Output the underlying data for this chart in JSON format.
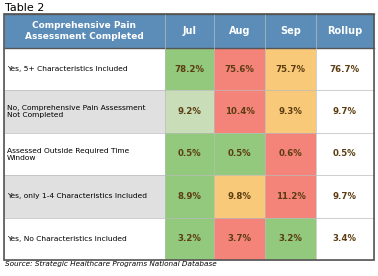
{
  "title": "Table 2",
  "header_label": "Comprehensive Pain\nAssessment Completed",
  "columns": [
    "Jul",
    "Aug",
    "Sep",
    "Rollup"
  ],
  "rows": [
    "Yes, 5+ Characteristics Included",
    "No, Comprehensive Pain Assessment\nNot Completed",
    "Assessed Outside Required Time\nWindow",
    "Yes, only 1-4 Characteristics Included",
    "Yes, No Characteristics Included"
  ],
  "values": [
    [
      "78.2%",
      "75.6%",
      "75.7%",
      "76.7%"
    ],
    [
      "9.2%",
      "10.4%",
      "9.3%",
      "9.7%"
    ],
    [
      "0.5%",
      "0.5%",
      "0.6%",
      "0.5%"
    ],
    [
      "8.9%",
      "9.8%",
      "11.2%",
      "9.7%"
    ],
    [
      "3.2%",
      "3.7%",
      "3.2%",
      "3.4%"
    ]
  ],
  "cell_colors": [
    [
      "#92C97C",
      "#F4837A",
      "#F9C97A",
      "#FFFFFF"
    ],
    [
      "#C8DDB8",
      "#F4837A",
      "#F9C97A",
      "#FFFFFF"
    ],
    [
      "#92C97C",
      "#92C97C",
      "#F4837A",
      "#FFFFFF"
    ],
    [
      "#92C97C",
      "#F9C97A",
      "#F4837A",
      "#FFFFFF"
    ],
    [
      "#92C97C",
      "#F4837A",
      "#92C97C",
      "#FFFFFF"
    ]
  ],
  "header_bg": "#5B8DB8",
  "header_text_color": "#FFFFFF",
  "row_bg_odd": "#FFFFFF",
  "row_bg_even": "#E0E0E0",
  "source_text": "Source: Strategic Healthcare Programs National Database",
  "grid_color": "#BBBBBB",
  "border_color": "#555555",
  "value_text_color": "#5C3D11"
}
